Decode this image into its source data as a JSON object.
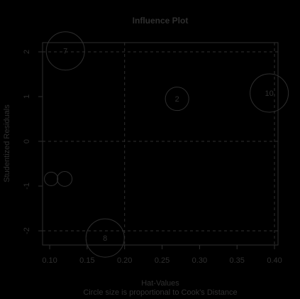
{
  "chart_data": {
    "type": "scatter",
    "title": "Influence Plot",
    "x_label": "Hat-Values",
    "subtitle": "Circle size is proportional to Cook's Distance",
    "y_label": "Studentized Residuals",
    "x": [
      0.121,
      0.27,
      0.393,
      0.102,
      0.12,
      0.174
    ],
    "series": [
      {
        "color": "#2e2e2e",
        "values": [
          2.02,
          0.95,
          1.08,
          -0.84,
          -0.84,
          -2.16
        ],
        "sizes": [
          0.8,
          0.3,
          0.8,
          0.1,
          0.12,
          0.8
        ],
        "point_labels": [
          "7",
          "2",
          "10",
          null,
          null,
          "8"
        ]
      }
    ],
    "xlim": [
      0.0905,
      0.4047
    ],
    "ylim": [
      -2.317,
      2.206
    ],
    "xticks": [
      {
        "value": 0.1,
        "label": "0.10"
      },
      {
        "value": 0.15,
        "label": "0.15"
      },
      {
        "value": 0.2,
        "label": "0.20"
      },
      {
        "value": 0.25,
        "label": "0.25"
      },
      {
        "value": 0.3,
        "label": "0.30"
      },
      {
        "value": 0.35,
        "label": "0.35"
      },
      {
        "value": 0.4,
        "label": "0.40"
      }
    ],
    "yticks": [
      -2,
      -1,
      0,
      1,
      2
    ],
    "reference_hlines": [
      -2,
      0,
      2
    ],
    "reference_vlines": [
      0.2,
      0.4
    ]
  }
}
